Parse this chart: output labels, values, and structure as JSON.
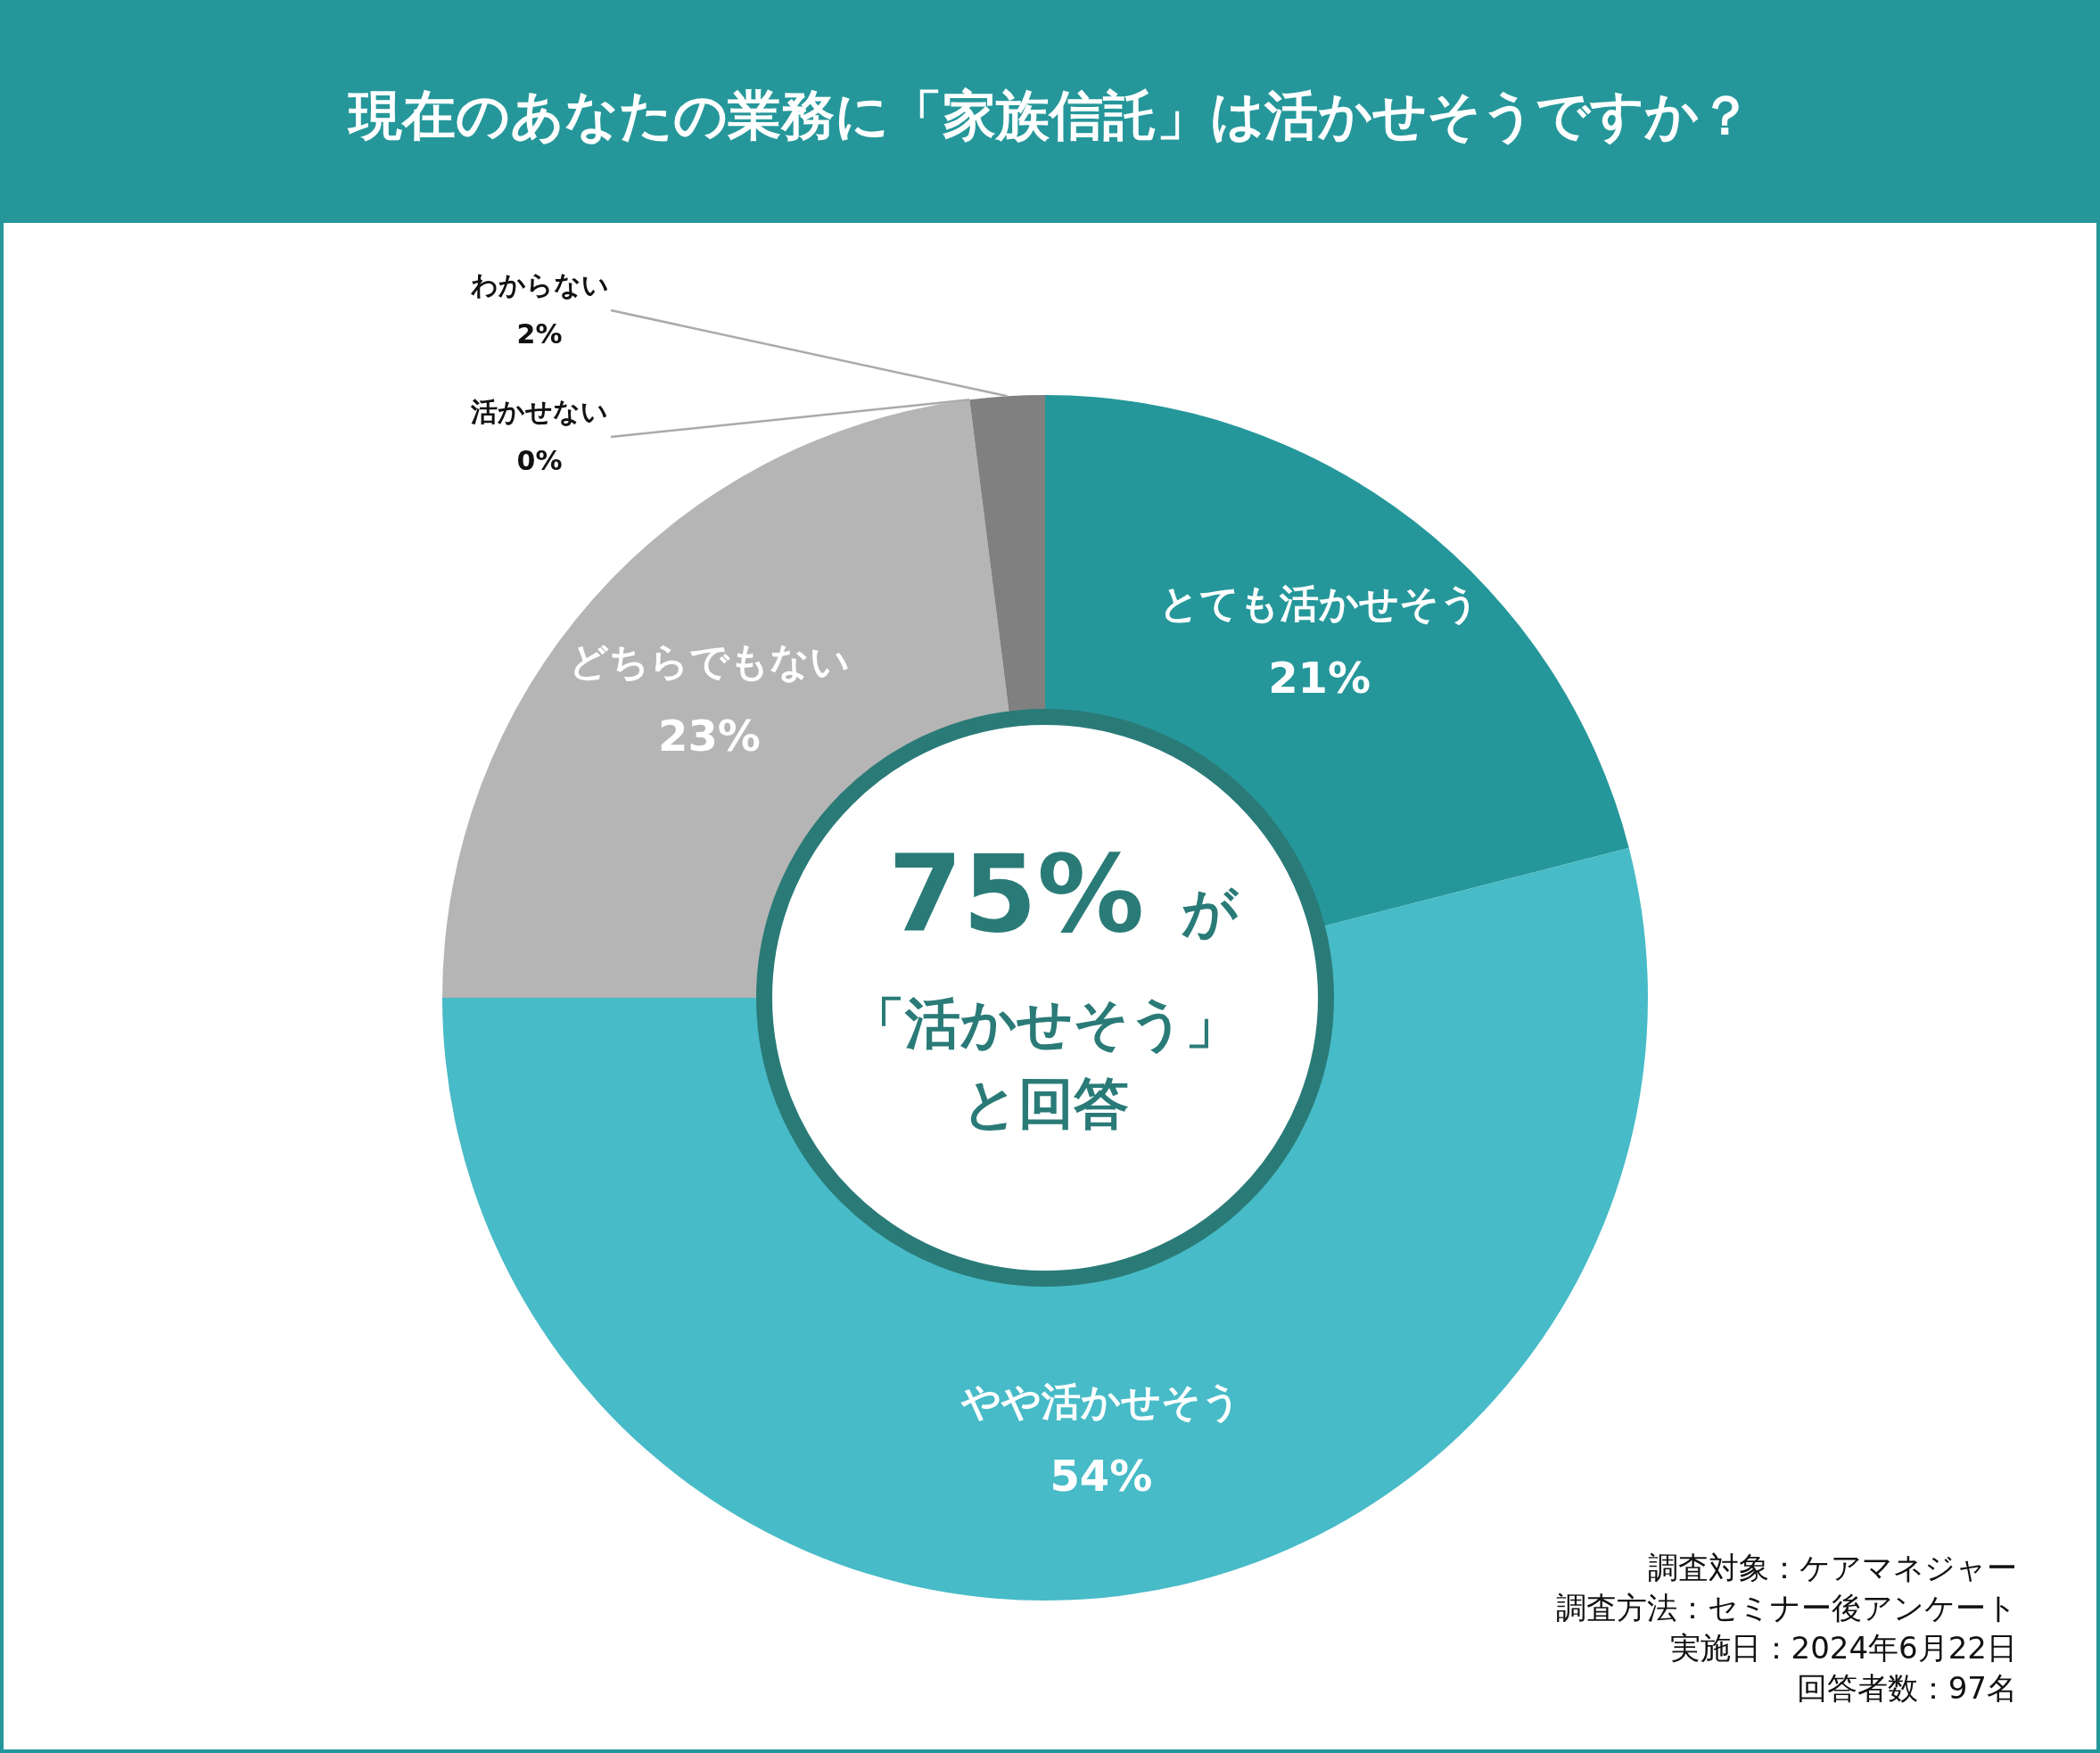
{
  "chart_data": {
    "type": "donut",
    "title": "現在のあなたの業務に「家族信託」は活かせそうですか？",
    "categories": [
      "とても活かせそう",
      "やや活かせそう",
      "どちらでもない",
      "活かせない",
      "わからない"
    ],
    "values": [
      21,
      54,
      23,
      0,
      2
    ],
    "colors": [
      "#25979a",
      "#47bbc7",
      "#b5b5b5",
      "#9a9a9a",
      "#808080"
    ],
    "value_labels": [
      "21%",
      "54%",
      "23%",
      "0%",
      "2%"
    ],
    "annotations": [
      "75% が",
      "「活かせそう」",
      "と回答",
      "調査対象：ケアマネジャー",
      "調査方法：セミナー後アンケート",
      "実施日：2024年6月22日",
      "回答者数：97名"
    ]
  }
}
